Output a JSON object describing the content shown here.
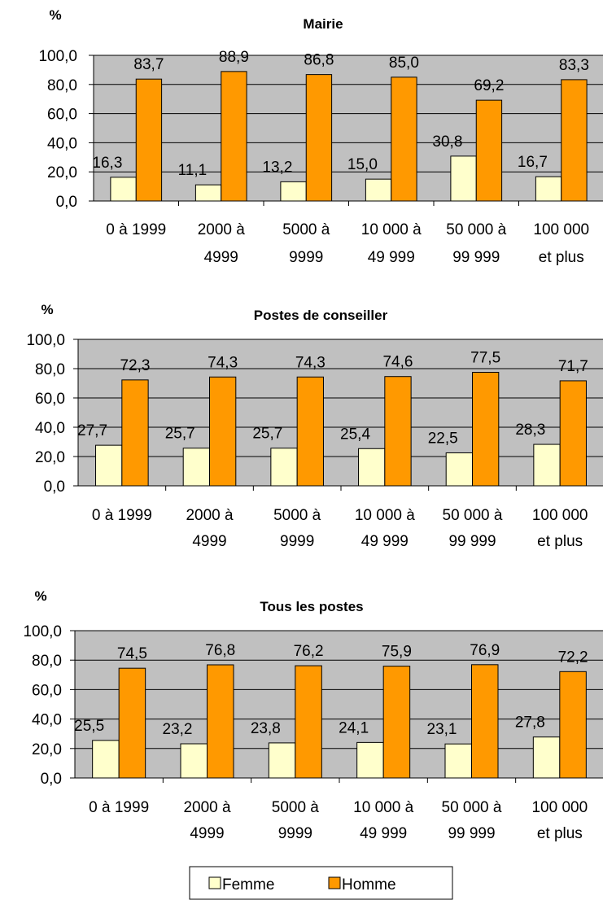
{
  "chart_data": [
    {
      "type": "bar",
      "title": "Mairie",
      "ylabel": "%",
      "ylim": [
        0,
        100
      ],
      "yticks": [
        "0,0",
        "20,0",
        "40,0",
        "60,0",
        "80,0",
        "100,0"
      ],
      "categories": [
        [
          "0 à 1999"
        ],
        [
          "2000 à",
          "4999"
        ],
        [
          "5000 à",
          "9999"
        ],
        [
          "10 000 à",
          "49 999"
        ],
        [
          "50 000 à",
          "99 999"
        ],
        [
          "100 000",
          "et plus"
        ]
      ],
      "series": [
        {
          "name": "Femme",
          "values": [
            16.3,
            11.1,
            13.2,
            15.0,
            30.8,
            16.7
          ],
          "labels": [
            "16,3",
            "11,1",
            "13,2",
            "15,0",
            "30,8",
            "16,7"
          ]
        },
        {
          "name": "Homme",
          "values": [
            83.7,
            88.9,
            86.8,
            85.0,
            69.2,
            83.3
          ],
          "labels": [
            "83,7",
            "88,9",
            "86,8",
            "85,0",
            "69,2",
            "83,3"
          ]
        }
      ]
    },
    {
      "type": "bar",
      "title": "Postes de conseiller",
      "ylabel": "%",
      "ylim": [
        0,
        100
      ],
      "yticks": [
        "0,0",
        "20,0",
        "40,0",
        "60,0",
        "80,0",
        "100,0"
      ],
      "categories": [
        [
          "0 à 1999"
        ],
        [
          "2000 à",
          "4999"
        ],
        [
          "5000 à",
          "9999"
        ],
        [
          "10 000 à",
          "49 999"
        ],
        [
          "50 000 à",
          "99 999"
        ],
        [
          "100 000",
          "et plus"
        ]
      ],
      "series": [
        {
          "name": "Femme",
          "values": [
            27.7,
            25.7,
            25.7,
            25.4,
            22.5,
            28.3
          ],
          "labels": [
            "27,7",
            "25,7",
            "25,7",
            "25,4",
            "22,5",
            "28,3"
          ]
        },
        {
          "name": "Homme",
          "values": [
            72.3,
            74.3,
            74.3,
            74.6,
            77.5,
            71.7
          ],
          "labels": [
            "72,3",
            "74,3",
            "74,3",
            "74,6",
            "77,5",
            "71,7"
          ]
        }
      ]
    },
    {
      "type": "bar",
      "title": "Tous les postes",
      "ylabel": "%",
      "ylim": [
        0,
        100
      ],
      "yticks": [
        "0,0",
        "20,0",
        "40,0",
        "60,0",
        "80,0",
        "100,0"
      ],
      "categories": [
        [
          "0 à 1999"
        ],
        [
          "2000 à",
          "4999"
        ],
        [
          "5000 à",
          "9999"
        ],
        [
          "10 000 à",
          "49 999"
        ],
        [
          "50 000 à",
          "99 999"
        ],
        [
          "100 000",
          "et plus"
        ]
      ],
      "series": [
        {
          "name": "Femme",
          "values": [
            25.5,
            23.2,
            23.8,
            24.1,
            23.1,
            27.8
          ],
          "labels": [
            "25,5",
            "23,2",
            "23,8",
            "24,1",
            "23,1",
            "27,8"
          ]
        },
        {
          "name": "Homme",
          "values": [
            74.5,
            76.8,
            76.2,
            75.9,
            76.9,
            72.2
          ],
          "labels": [
            "74,5",
            "76,8",
            "76,2",
            "75,9",
            "76,9",
            "72,2"
          ]
        }
      ]
    }
  ],
  "legend": {
    "placement": "bottom",
    "items": [
      "Femme",
      "Homme"
    ]
  },
  "colors": {
    "plot_bg": "#c0c0c0",
    "femme": "#ffffcc",
    "homme": "#ff9900",
    "bar_stroke": "#000000"
  }
}
